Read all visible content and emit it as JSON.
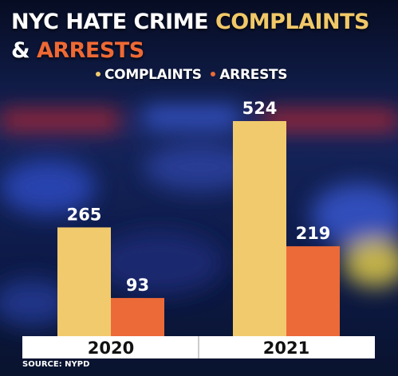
{
  "title": {
    "line1_prefix": "NYC HATE CRIME",
    "line1_highlight": "COMPLAINTS",
    "line2_amp": "&",
    "line2_highlight": "ARRESTS"
  },
  "legend": {
    "complaints": "COMPLAINTS",
    "arrests": "ARRESTS"
  },
  "source": "SOURCE: NYPD",
  "colors": {
    "complaints": "#f1ca6e",
    "arrests": "#ec6a38",
    "axis_band": "#ffffff",
    "background": "#0b1535"
  },
  "chart_data": {
    "type": "bar",
    "categories": [
      "2020",
      "2021"
    ],
    "series": [
      {
        "name": "COMPLAINTS",
        "values": [
          265,
          524
        ]
      },
      {
        "name": "ARRESTS",
        "values": [
          93,
          219
        ]
      }
    ],
    "ylim": [
      0,
      524
    ],
    "data_labels": true,
    "grid": false,
    "legend_position": "top"
  }
}
